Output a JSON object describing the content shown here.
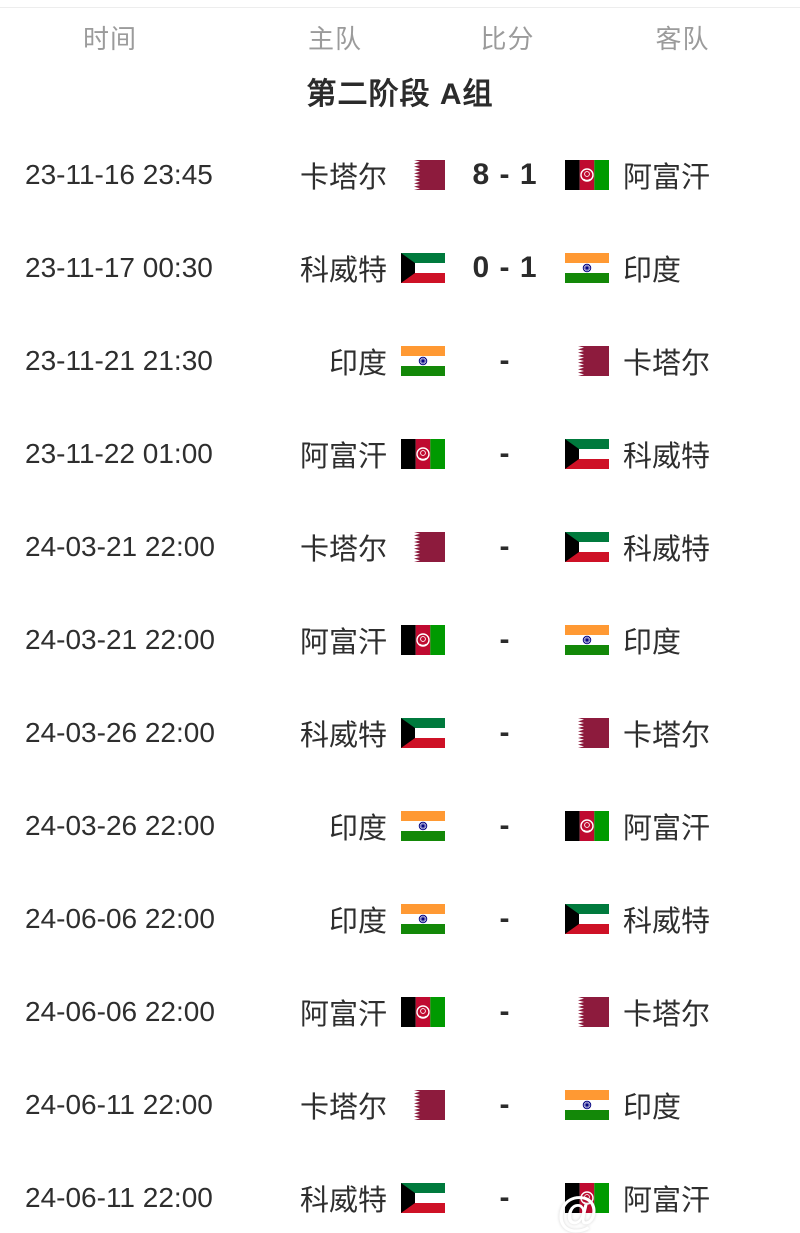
{
  "table": {
    "columns": [
      "时间",
      "主队",
      "比分",
      "客队"
    ],
    "stage_title": "第二阶段 A组"
  },
  "colors": {
    "text_dark": "#2e2e2e",
    "text_gray": "#9b9b9b",
    "qatar_maroon": "#8d1b3d",
    "qatar_white": "#ffffff",
    "afghan_black": "#000000",
    "afghan_red": "#bf0a30",
    "afghan_green": "#009a00",
    "afghan_emblem_white": "#ffffff",
    "kuwait_green": "#007a3d",
    "kuwait_white": "#ffffff",
    "kuwait_red": "#ce1126",
    "kuwait_black": "#000000",
    "india_saffron": "#ff9933",
    "india_white": "#ffffff",
    "india_green": "#138808",
    "india_navy": "#000080"
  },
  "matches": [
    {
      "time": "23-11-16 23:45",
      "home": "卡塔尔",
      "home_flag": "qatar",
      "score": "8 - 1",
      "away": "阿富汗",
      "away_flag": "afghanistan"
    },
    {
      "time": "23-11-17 00:30",
      "home": "科威特",
      "home_flag": "kuwait",
      "score": "0 - 1",
      "away": "印度",
      "away_flag": "india"
    },
    {
      "time": "23-11-21 21:30",
      "home": "印度",
      "home_flag": "india",
      "score": "-",
      "away": "卡塔尔",
      "away_flag": "qatar"
    },
    {
      "time": "23-11-22 01:00",
      "home": "阿富汗",
      "home_flag": "afghanistan",
      "score": "-",
      "away": "科威特",
      "away_flag": "kuwait"
    },
    {
      "time": "24-03-21 22:00",
      "home": "卡塔尔",
      "home_flag": "qatar",
      "score": "-",
      "away": "科威特",
      "away_flag": "kuwait"
    },
    {
      "time": "24-03-21 22:00",
      "home": "阿富汗",
      "home_flag": "afghanistan",
      "score": "-",
      "away": "印度",
      "away_flag": "india"
    },
    {
      "time": "24-03-26 22:00",
      "home": "科威特",
      "home_flag": "kuwait",
      "score": "-",
      "away": "卡塔尔",
      "away_flag": "qatar"
    },
    {
      "time": "24-03-26 22:00",
      "home": "印度",
      "home_flag": "india",
      "score": "-",
      "away": "阿富汗",
      "away_flag": "afghanistan"
    },
    {
      "time": "24-06-06 22:00",
      "home": "印度",
      "home_flag": "india",
      "score": "-",
      "away": "科威特",
      "away_flag": "kuwait"
    },
    {
      "time": "24-06-06 22:00",
      "home": "阿富汗",
      "home_flag": "afghanistan",
      "score": "-",
      "away": "卡塔尔",
      "away_flag": "qatar"
    },
    {
      "time": "24-06-11 22:00",
      "home": "卡塔尔",
      "home_flag": "qatar",
      "score": "-",
      "away": "印度",
      "away_flag": "india"
    },
    {
      "time": "24-06-11 22:00",
      "home": "科威特",
      "home_flag": "kuwait",
      "score": "-",
      "away": "阿富汗",
      "away_flag": "afghanistan",
      "watermark": "@"
    }
  ]
}
